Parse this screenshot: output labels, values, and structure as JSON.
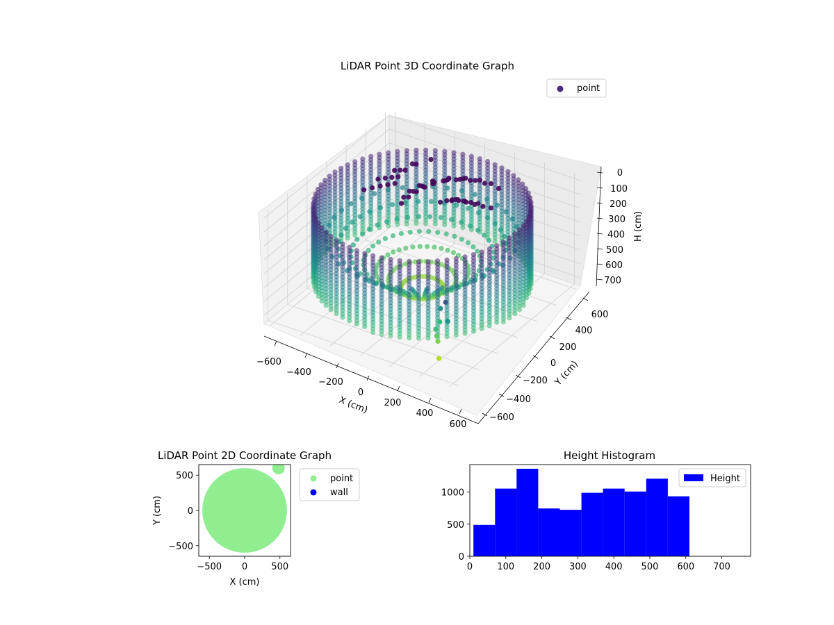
{
  "chart_data": [
    {
      "type": "scatter3d",
      "title": "LiDAR Point 3D Coordinate Graph",
      "xlabel": "X (cm)",
      "ylabel": "Y (cm)",
      "zlabel": "H (cm)",
      "x_ticks": [
        "−600",
        "−400",
        "−200",
        "0",
        "200",
        "400",
        "600"
      ],
      "y_ticks": [
        "−600",
        "−400",
        "−200",
        "0",
        "200",
        "400",
        "600"
      ],
      "z_ticks": [
        "0",
        "100",
        "200",
        "300",
        "400",
        "500",
        "600",
        "700"
      ],
      "xlim": [
        -640,
        640
      ],
      "ylim": [
        -640,
        640
      ],
      "zlim": [
        760,
        0
      ],
      "zaxis_inverted": true,
      "colormap": "viridis",
      "legend": {
        "placement": "top-right",
        "entries": [
          {
            "name": "point",
            "color": "#472c7a"
          }
        ]
      },
      "ring_radius_cm": 620,
      "ring_height_range_cm": [
        0,
        600
      ],
      "interior_height_range_cm": [
        0,
        760
      ],
      "outlier_points": [
        {
          "x": 280,
          "y": -240,
          "z": 545,
          "color": "#2b8c8d"
        },
        {
          "x": 300,
          "y": -320,
          "z": 640,
          "color": "#42b97d"
        },
        {
          "x": 340,
          "y": -280,
          "z": 455,
          "color": "#3a548c"
        },
        {
          "x": 340,
          "y": -340,
          "z": 560,
          "color": "#35b779"
        },
        {
          "x": 400,
          "y": -350,
          "z": 530,
          "color": "#20928c"
        },
        {
          "x": 360,
          "y": -400,
          "z": 620,
          "color": "#5ec962"
        },
        {
          "x": 380,
          "y": -420,
          "z": 640,
          "color": "#7ad151"
        },
        {
          "x": 420,
          "y": -470,
          "z": 720,
          "color": "#b5de2b"
        }
      ]
    },
    {
      "type": "scatter",
      "title": "LiDAR Point 2D Coordinate Graph",
      "xlabel": "X (cm)",
      "ylabel": "Y (cm)",
      "x_ticks": [
        -500,
        0,
        500
      ],
      "y_ticks": [
        -500,
        0,
        500
      ],
      "xlim": [
        -650,
        650
      ],
      "ylim": [
        -650,
        650
      ],
      "legend": {
        "placement": "outside-right",
        "entries": [
          {
            "name": "point",
            "color": "#90ee90"
          },
          {
            "name": "wall",
            "color": "#0000ff"
          }
        ]
      },
      "point_cloud": {
        "shape": "disc",
        "center": [
          0,
          0
        ],
        "radius_cm": 600,
        "color": "#90ee90"
      },
      "wall_points": []
    },
    {
      "type": "bar",
      "title": "Height Histogram",
      "xlabel": "",
      "ylabel": "",
      "bin_edges": [
        10,
        70,
        130,
        190,
        250,
        310,
        370,
        430,
        490,
        550,
        610
      ],
      "values": [
        490,
        1055,
        1365,
        745,
        725,
        990,
        1055,
        1010,
        1210,
        935
      ],
      "xlim": [
        0,
        780
      ],
      "ylim": [
        0,
        1430
      ],
      "x_ticks": [
        0,
        100,
        200,
        300,
        400,
        500,
        600,
        700
      ],
      "y_ticks": [
        0,
        500,
        1000
      ],
      "color": "#0000ff",
      "legend": {
        "placement": "top-right",
        "entries": [
          {
            "name": "Height",
            "color": "#0000ff"
          }
        ]
      }
    }
  ]
}
